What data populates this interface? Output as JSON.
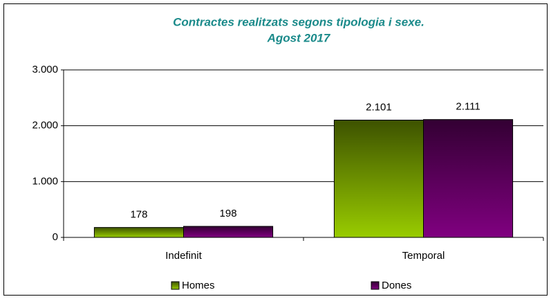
{
  "chart_data": {
    "type": "bar",
    "title": [
      "Contractes realitzats segons tipologia i sexe.",
      "Agost 2017"
    ],
    "categories": [
      "Indefinit",
      "Temporal"
    ],
    "series": [
      {
        "name": "Homes",
        "color": "#99cc00",
        "values": [
          178,
          2101
        ],
        "value_labels": [
          "178",
          "2.101"
        ]
      },
      {
        "name": "Dones",
        "color": "#800080",
        "values": [
          198,
          2111
        ],
        "value_labels": [
          "198",
          "2.111"
        ]
      }
    ],
    "ylim": [
      0,
      3000
    ],
    "yticks": [
      0,
      {
        "value": 1000,
        "label": "1.000"
      },
      {
        "value": 2000,
        "label": "2.000"
      },
      {
        "value": 3000,
        "label": "3.000"
      }
    ],
    "grid": true,
    "legend": "bottom"
  }
}
